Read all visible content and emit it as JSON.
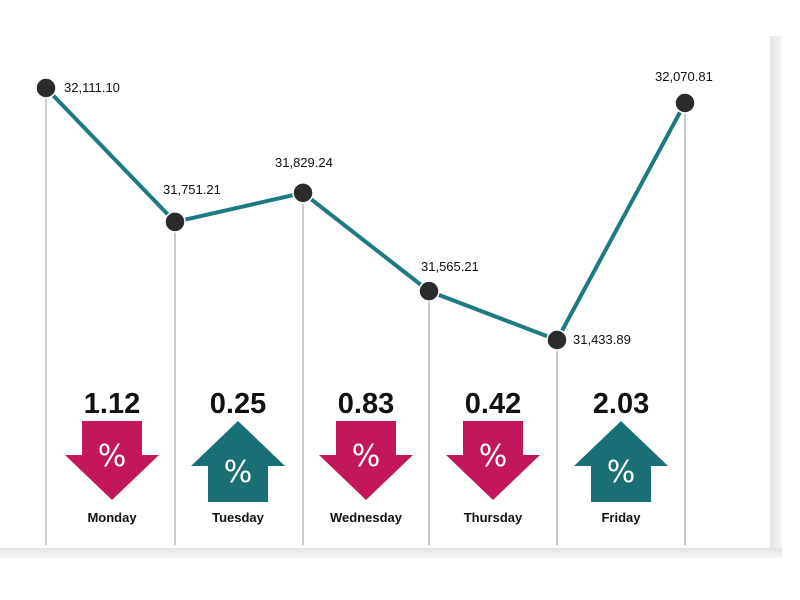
{
  "chart_data": {
    "type": "line",
    "title": "",
    "xlabel": "",
    "ylabel": "",
    "ylim": [
      31400,
      32150
    ],
    "categories": [
      "Monday",
      "Tuesday",
      "Wednesday",
      "Thursday",
      "Friday"
    ],
    "points": [
      {
        "value": 32111.1,
        "label": "32,111.10"
      },
      {
        "value": 31751.21,
        "label": "31,751.21"
      },
      {
        "value": 31829.24,
        "label": "31,829.24"
      },
      {
        "value": 31565.21,
        "label": "31,565.21"
      },
      {
        "value": 31433.89,
        "label": "31,433.89"
      },
      {
        "value": 32070.81,
        "label": "32,070.81"
      }
    ],
    "daily_change": [
      {
        "day": "Monday",
        "percent": "1.12",
        "direction": "down"
      },
      {
        "day": "Tuesday",
        "percent": "0.25",
        "direction": "up"
      },
      {
        "day": "Wednesday",
        "percent": "0.83",
        "direction": "down"
      },
      {
        "day": "Thursday",
        "percent": "0.42",
        "direction": "down"
      },
      {
        "day": "Friday",
        "percent": "2.03",
        "direction": "up"
      }
    ],
    "percent_symbol": "%",
    "colors": {
      "line": "#1c7a80",
      "marker": "#2b2b2b",
      "down": "#c2185b",
      "up": "#1a6f74",
      "gridline": "#9a9a9a"
    }
  }
}
